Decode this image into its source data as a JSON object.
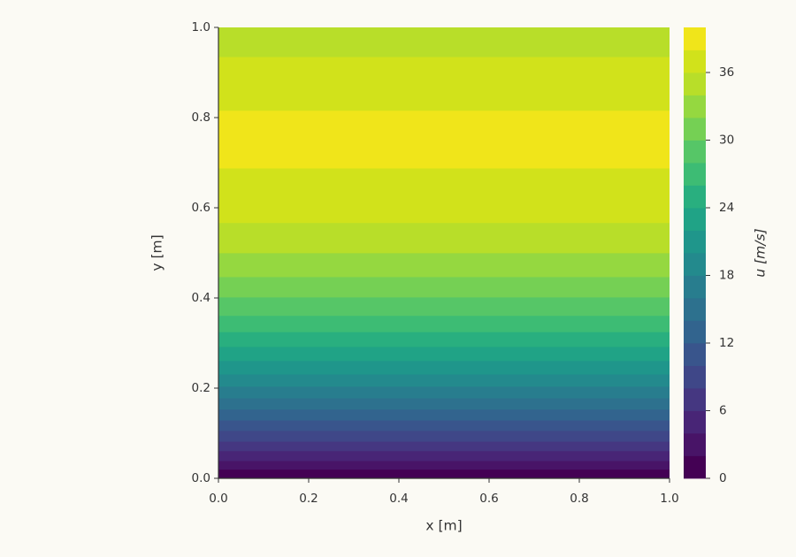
{
  "chart_data": {
    "type": "contourf",
    "x_label": "x [m]",
    "y_label": "y [m]",
    "colorbar_label": "u [m/s]",
    "xlim": [
      0,
      1
    ],
    "ylim": [
      0,
      1
    ],
    "xticks": [
      {
        "value": 0,
        "label": "0.0"
      },
      {
        "value": 0.2,
        "label": "0.2"
      },
      {
        "value": 0.4,
        "label": "0.4"
      },
      {
        "value": 0.6,
        "label": "0.6"
      },
      {
        "value": 0.8,
        "label": "0.8"
      },
      {
        "value": 1,
        "label": "1.0"
      }
    ],
    "yticks": [
      {
        "value": 0,
        "label": "0.0"
      },
      {
        "value": 0.2,
        "label": "0.2"
      },
      {
        "value": 0.4,
        "label": "0.4"
      },
      {
        "value": 0.6,
        "label": "0.6"
      },
      {
        "value": 0.8,
        "label": "0.8"
      },
      {
        "value": 1,
        "label": "1.0"
      }
    ],
    "y_edges": [
      0,
      0.02,
      0.039,
      0.061,
      0.082,
      0.106,
      0.129,
      0.153,
      0.178,
      0.204,
      0.231,
      0.261,
      0.292,
      0.325,
      0.361,
      0.402,
      0.447,
      0.5,
      0.567,
      0.688,
      0.816,
      0.935,
      1.0
    ],
    "band_values": [
      0,
      2,
      4,
      6,
      8,
      10,
      12,
      14,
      16,
      18,
      20,
      22,
      24,
      26,
      28,
      30,
      32,
      34,
      36,
      38,
      36,
      34
    ],
    "levels": [
      0,
      2,
      4,
      6,
      8,
      10,
      12,
      14,
      16,
      18,
      20,
      22,
      24,
      26,
      28,
      30,
      32,
      34,
      36,
      38,
      40
    ],
    "colors": [
      "#440154",
      "#481467",
      "#482576",
      "#453781",
      "#3f4788",
      "#39558c",
      "#32648e",
      "#2d718e",
      "#287d8e",
      "#238a8d",
      "#1f968b",
      "#20a386",
      "#29af7f",
      "#3dbc74",
      "#56c667",
      "#75d054",
      "#95d840",
      "#b8de29",
      "#d1e21b",
      "#f0e51a"
    ],
    "clim": [
      0,
      40
    ],
    "colorbar_ticks": [
      0,
      6,
      12,
      18,
      24,
      30,
      36
    ]
  }
}
